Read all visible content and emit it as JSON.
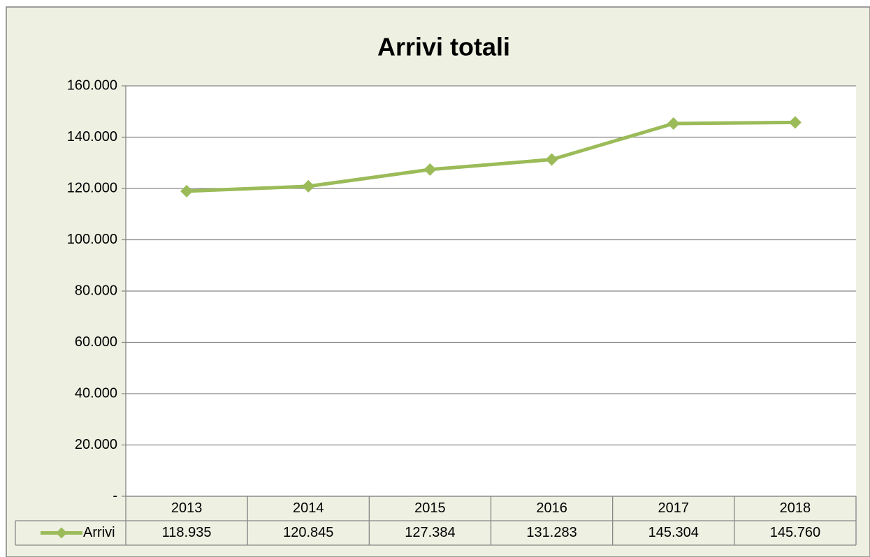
{
  "chart_data": {
    "type": "line",
    "title": "Arrivi totali",
    "categories": [
      "2013",
      "2014",
      "2015",
      "2016",
      "2017",
      "2018"
    ],
    "series": [
      {
        "name": "Arrivi",
        "color": "#9bbb59",
        "values": [
          118935,
          120845,
          127384,
          131283,
          145304,
          145760
        ],
        "value_labels": [
          "118.935",
          "120.845",
          "127.384",
          "131.283",
          "145.304",
          "145.760"
        ]
      }
    ],
    "ylim": [
      0,
      160000
    ],
    "yticks": [
      {
        "value": 0,
        "label": "-"
      },
      {
        "value": 20000,
        "label": "20.000"
      },
      {
        "value": 40000,
        "label": "40.000"
      },
      {
        "value": 60000,
        "label": "60.000"
      },
      {
        "value": 80000,
        "label": "80.000"
      },
      {
        "value": 100000,
        "label": "100.000"
      },
      {
        "value": 120000,
        "label": "120.000"
      },
      {
        "value": 140000,
        "label": "140.000"
      },
      {
        "value": 160000,
        "label": "160.000"
      }
    ],
    "grid": true,
    "legend": "data-table"
  }
}
